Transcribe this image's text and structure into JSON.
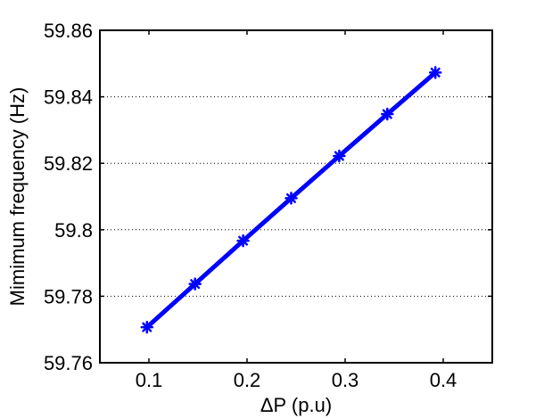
{
  "chart_data": {
    "type": "line",
    "title": "",
    "xlabel": "ΔP (p.u)",
    "ylabel": "Mimimum frequency (Hz)",
    "xlim": [
      0.05,
      0.45
    ],
    "ylim": [
      59.76,
      59.86
    ],
    "xticks": [
      0.1,
      0.2,
      0.3,
      0.4
    ],
    "xtick_labels": [
      "0.1",
      "0.2",
      "0.3",
      "0.4"
    ],
    "yticks": [
      59.76,
      59.78,
      59.8,
      59.82,
      59.84,
      59.86
    ],
    "ytick_labels": [
      "59.76",
      "59.78",
      "59.8",
      "59.82",
      "59.84",
      "59.86"
    ],
    "grid": {
      "x": false,
      "y": true,
      "style": "dotted"
    },
    "legend": null,
    "series": [
      {
        "color": "#0000ff",
        "marker": "asterisk",
        "x": [
          0.098,
          0.147,
          0.196,
          0.245,
          0.294,
          0.343,
          0.392
        ],
        "y": [
          59.7707,
          59.7837,
          59.7967,
          59.8095,
          59.8222,
          59.8348,
          59.8473
        ]
      }
    ]
  }
}
